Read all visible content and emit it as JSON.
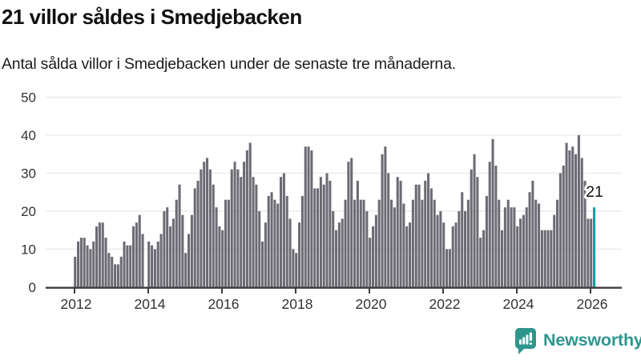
{
  "header": {
    "title": "21 villor såldes i Smedjebacken",
    "subtitle": "Antal sålda villor i Smedjebacken under de senaste tre månaderna."
  },
  "chart_data": {
    "type": "bar",
    "title": "21 villor såldes i Smedjebacken",
    "subtitle": "Antal sålda villor i Smedjebacken under de senaste tre månaderna.",
    "frequency": "monthly",
    "start": "2012-01",
    "end": "2026-02",
    "note": "rolling 3-month count of sold houses; 0 = missing month (gap)",
    "values": [
      8,
      12,
      13,
      13,
      11,
      10,
      12,
      16,
      17,
      17,
      13,
      9,
      8,
      6,
      6,
      8,
      12,
      11,
      11,
      16,
      17,
      19,
      14,
      0,
      12,
      11,
      10,
      12,
      14,
      20,
      21,
      16,
      18,
      23,
      27,
      19,
      9,
      14,
      19,
      26,
      28,
      31,
      33,
      34,
      31,
      27,
      21,
      16,
      15,
      23,
      23,
      31,
      33,
      31,
      29,
      33,
      36,
      38,
      29,
      27,
      20,
      12,
      17,
      24,
      25,
      23,
      22,
      29,
      30,
      24,
      18,
      10,
      9,
      17,
      24,
      37,
      37,
      36,
      26,
      26,
      29,
      27,
      30,
      28,
      20,
      15,
      17,
      18,
      23,
      33,
      34,
      23,
      28,
      23,
      23,
      20,
      13,
      16,
      19,
      23,
      35,
      37,
      30,
      23,
      21,
      29,
      28,
      22,
      16,
      17,
      23,
      27,
      27,
      23,
      28,
      30,
      26,
      23,
      19,
      20,
      17,
      10,
      10,
      16,
      17,
      20,
      25,
      20,
      23,
      31,
      35,
      29,
      13,
      15,
      24,
      33,
      39,
      32,
      23,
      15,
      21,
      23,
      21,
      21,
      16,
      18,
      19,
      21,
      25,
      28,
      23,
      22,
      15,
      15,
      15,
      15,
      19,
      23,
      30,
      32,
      38,
      36,
      37,
      35,
      40,
      34,
      28,
      18,
      18,
      21
    ],
    "highlight_last": {
      "value": 21,
      "label": "21"
    },
    "ylim": [
      0,
      50
    ],
    "y_ticks": [
      0,
      10,
      20,
      30,
      40,
      50
    ],
    "x_tick_labels": [
      "2012",
      "2014",
      "2016",
      "2018",
      "2020",
      "2022",
      "2024",
      "2026"
    ],
    "grid": true,
    "legend": "none",
    "colors": {
      "bar": "#6b6b73",
      "highlight": "#00a1a2",
      "grid": "#e9e9e9",
      "axis": "#3d3d3d",
      "tick_text": "#333333",
      "annotation_text": "#111111"
    }
  },
  "footer": {
    "brand": "Newsworthy",
    "brand_color": "#2f968e",
    "logo_icon": "newsworthy-chart-bubble-icon"
  }
}
